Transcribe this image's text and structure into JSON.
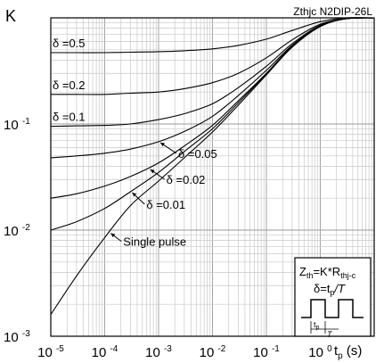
{
  "chart_data": {
    "type": "line",
    "title": "Zthjc N2DIP-26L",
    "ylabel": "K",
    "xlabel_main": "t",
    "xlabel_sub": "p",
    "xlabel_unit": " (s)",
    "xscale": "log",
    "yscale": "log",
    "xlim": [
      1e-05,
      10
    ],
    "ylim": [
      0.001,
      1
    ],
    "grid": true,
    "x_ticks": [
      {
        "base": "10",
        "exp": "-5"
      },
      {
        "base": "10",
        "exp": "-4"
      },
      {
        "base": "10",
        "exp": "-3"
      },
      {
        "base": "10",
        "exp": "-2"
      },
      {
        "base": "10",
        "exp": "-1"
      },
      {
        "base": "10",
        "exp": "0"
      }
    ],
    "y_ticks": [
      {
        "value": 0.001,
        "base": "10",
        "exp": "-3"
      },
      {
        "value": 0.01,
        "base": "10",
        "exp": "-2"
      },
      {
        "value": 0.1,
        "base": "10",
        "exp": "-1"
      }
    ],
    "x": [
      1e-05,
      3e-05,
      0.0001,
      0.0003,
      0.001,
      0.003,
      0.01,
      0.03,
      0.1,
      0.3,
      1,
      3,
      10
    ],
    "series": [
      {
        "name": "δ =0.5",
        "values": [
          0.47,
          0.47,
          0.47,
          0.475,
          0.48,
          0.49,
          0.51,
          0.55,
          0.63,
          0.76,
          0.92,
          1.0,
          1.0
        ]
      },
      {
        "name": "δ =0.2",
        "values": [
          0.19,
          0.19,
          0.19,
          0.195,
          0.2,
          0.215,
          0.245,
          0.3,
          0.42,
          0.62,
          0.87,
          0.98,
          1.0
        ]
      },
      {
        "name": "δ =0.1",
        "values": [
          0.095,
          0.096,
          0.097,
          0.1,
          0.11,
          0.125,
          0.155,
          0.22,
          0.35,
          0.57,
          0.85,
          0.98,
          1.0
        ]
      },
      {
        "name": "δ =0.05",
        "values": [
          0.048,
          0.05,
          0.053,
          0.058,
          0.068,
          0.085,
          0.118,
          0.185,
          0.32,
          0.55,
          0.84,
          0.98,
          1.0
        ]
      },
      {
        "name": "δ =0.02",
        "values": [
          0.02,
          0.022,
          0.026,
          0.032,
          0.043,
          0.062,
          0.097,
          0.165,
          0.3,
          0.54,
          0.83,
          0.98,
          1.0
        ]
      },
      {
        "name": "δ =0.01",
        "values": [
          0.01,
          0.012,
          0.016,
          0.023,
          0.035,
          0.055,
          0.09,
          0.158,
          0.295,
          0.53,
          0.83,
          0.98,
          1.0
        ]
      },
      {
        "name": "Single pulse",
        "values": [
          0.0016,
          0.0037,
          0.0085,
          0.017,
          0.029,
          0.048,
          0.084,
          0.15,
          0.29,
          0.53,
          0.83,
          0.98,
          1.0
        ]
      }
    ],
    "annotations": [
      {
        "label": "δ =0.05",
        "x": 0.001,
        "y": 0.068
      },
      {
        "label": "δ =0.02",
        "x": 0.00065,
        "y": 0.038
      },
      {
        "label": "δ =0.01",
        "x": 0.0003,
        "y": 0.023
      },
      {
        "label": "Single pulse",
        "x": 0.00012,
        "y": 0.0095
      }
    ],
    "legend_box": {
      "placement": "bottom-right",
      "line1_main": "Z",
      "line1_sub1": "th",
      "line1_mid": "=K*R",
      "line1_sub2": "thj-c",
      "line2_main": "δ=t",
      "line2_sub": "p",
      "line2_end": "/T",
      "pulse_label": "t",
      "pulse_label_sub": "p",
      "period_label": "T"
    }
  }
}
